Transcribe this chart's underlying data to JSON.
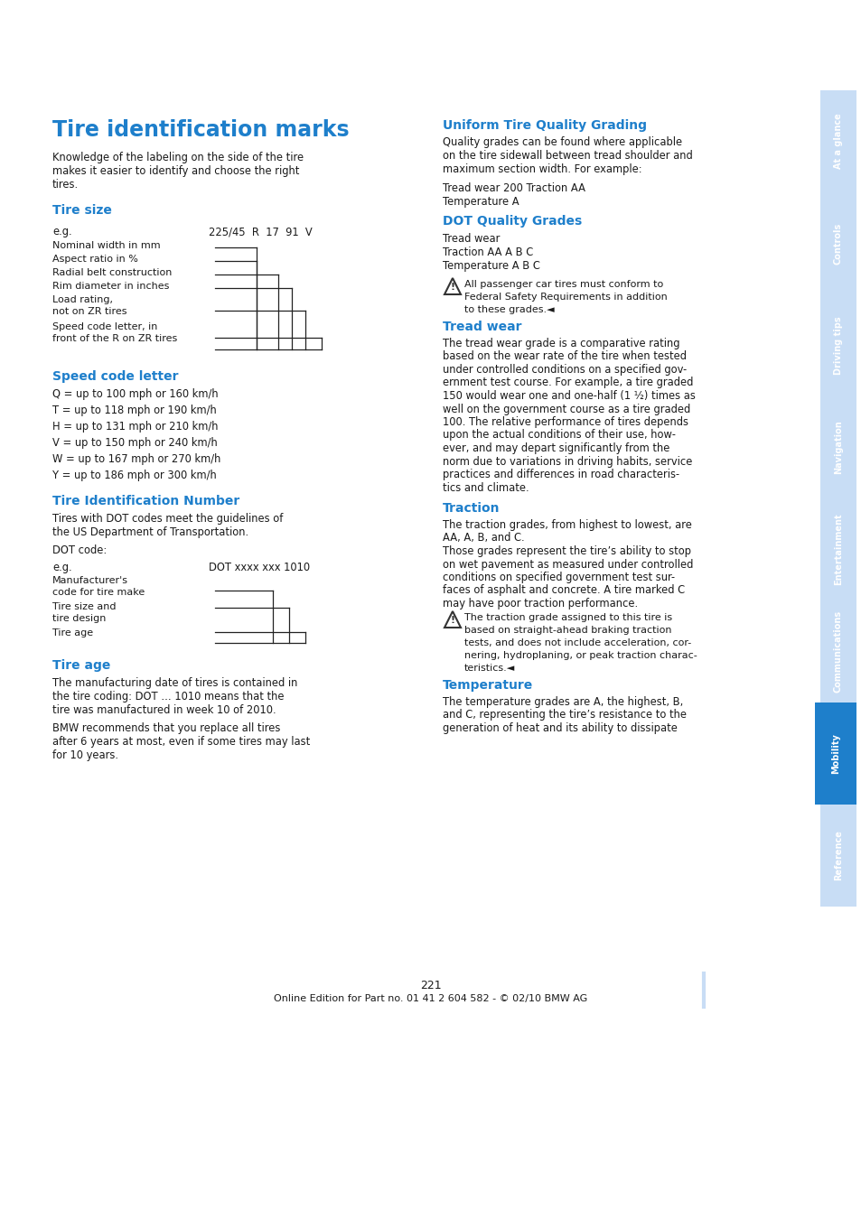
{
  "page_bg": "#ffffff",
  "sidebar_color": "#c8ddf5",
  "sidebar_active_color": "#1e7fcb",
  "blue_heading": "#1e7fcb",
  "black_text": "#1a1a1a",
  "title": "Tire identification marks",
  "sidebar_labels": [
    "At a glance",
    "Controls",
    "Driving tips",
    "Navigation",
    "Entertainment",
    "Communications",
    "Mobility",
    "Reference"
  ],
  "active_sidebar": "Mobility",
  "page_number": "221",
  "footer": "Online Edition for Part no. 01 41 2 604 582 - © 02/10 BMW AG"
}
